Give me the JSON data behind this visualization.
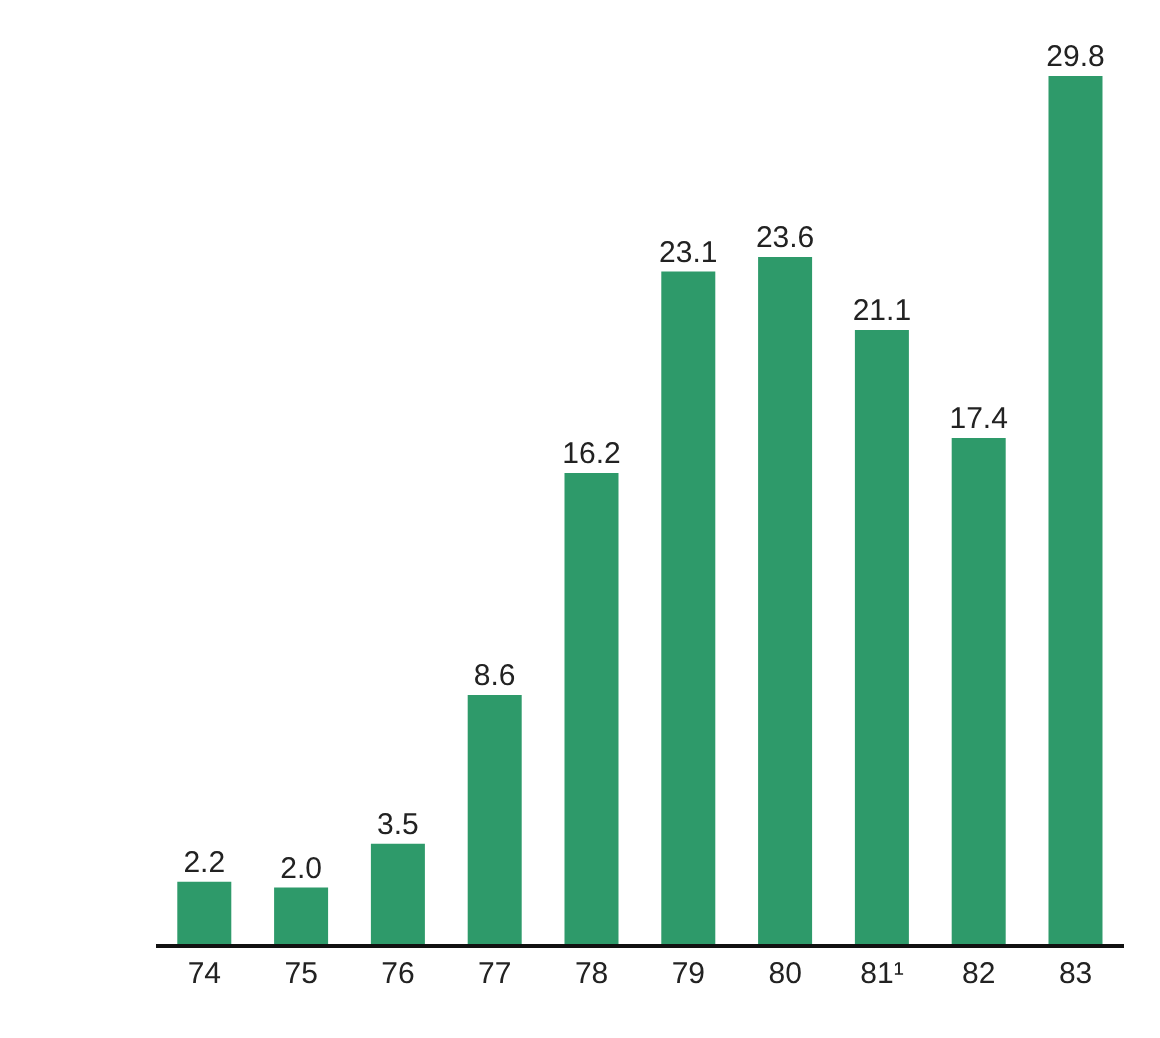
{
  "chart_data": {
    "type": "bar",
    "categories": [
      "74",
      "75",
      "76",
      "77",
      "78",
      "79",
      "80",
      "81¹",
      "82",
      "83"
    ],
    "values": [
      2.2,
      2.0,
      3.5,
      8.6,
      16.2,
      23.1,
      23.6,
      21.1,
      17.4,
      29.8
    ],
    "value_labels": [
      "2.2",
      "2.0",
      "3.5",
      "8.6",
      "16.2",
      "23.1",
      "23.6",
      "21.1",
      "17.4",
      "29.8"
    ],
    "color": "#2e9a6a"
  }
}
